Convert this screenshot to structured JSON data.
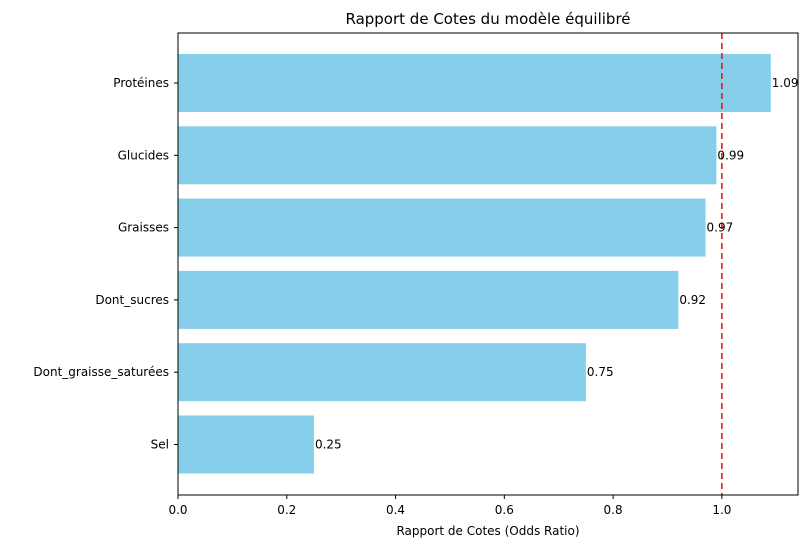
{
  "chart_data": {
    "type": "bar",
    "orientation": "horizontal",
    "title": "Rapport de Cotes du modèle équilibré",
    "xlabel": "Rapport de Cotes (Odds Ratio)",
    "ylabel": "",
    "categories": [
      "Protéines",
      "Glucides",
      "Graisses",
      "Dont_sucres",
      "Dont_graisse_saturées",
      "Sel"
    ],
    "values": [
      1.09,
      0.99,
      0.97,
      0.92,
      0.75,
      0.25
    ],
    "value_labels": [
      "1.09",
      "0.99",
      "0.97",
      "0.92",
      "0.75",
      "0.25"
    ],
    "xlim": [
      0.0,
      1.14
    ],
    "xticks": [
      0.0,
      0.2,
      0.4,
      0.6,
      0.8,
      1.0
    ],
    "xtick_labels": [
      "0.0",
      "0.2",
      "0.4",
      "0.6",
      "0.8",
      "1.0"
    ],
    "reference_line": {
      "x": 1.0,
      "style": "dashed",
      "color": "#e41a1c"
    },
    "bar_color": "#87ceeb",
    "grid": false,
    "legend": null
  }
}
